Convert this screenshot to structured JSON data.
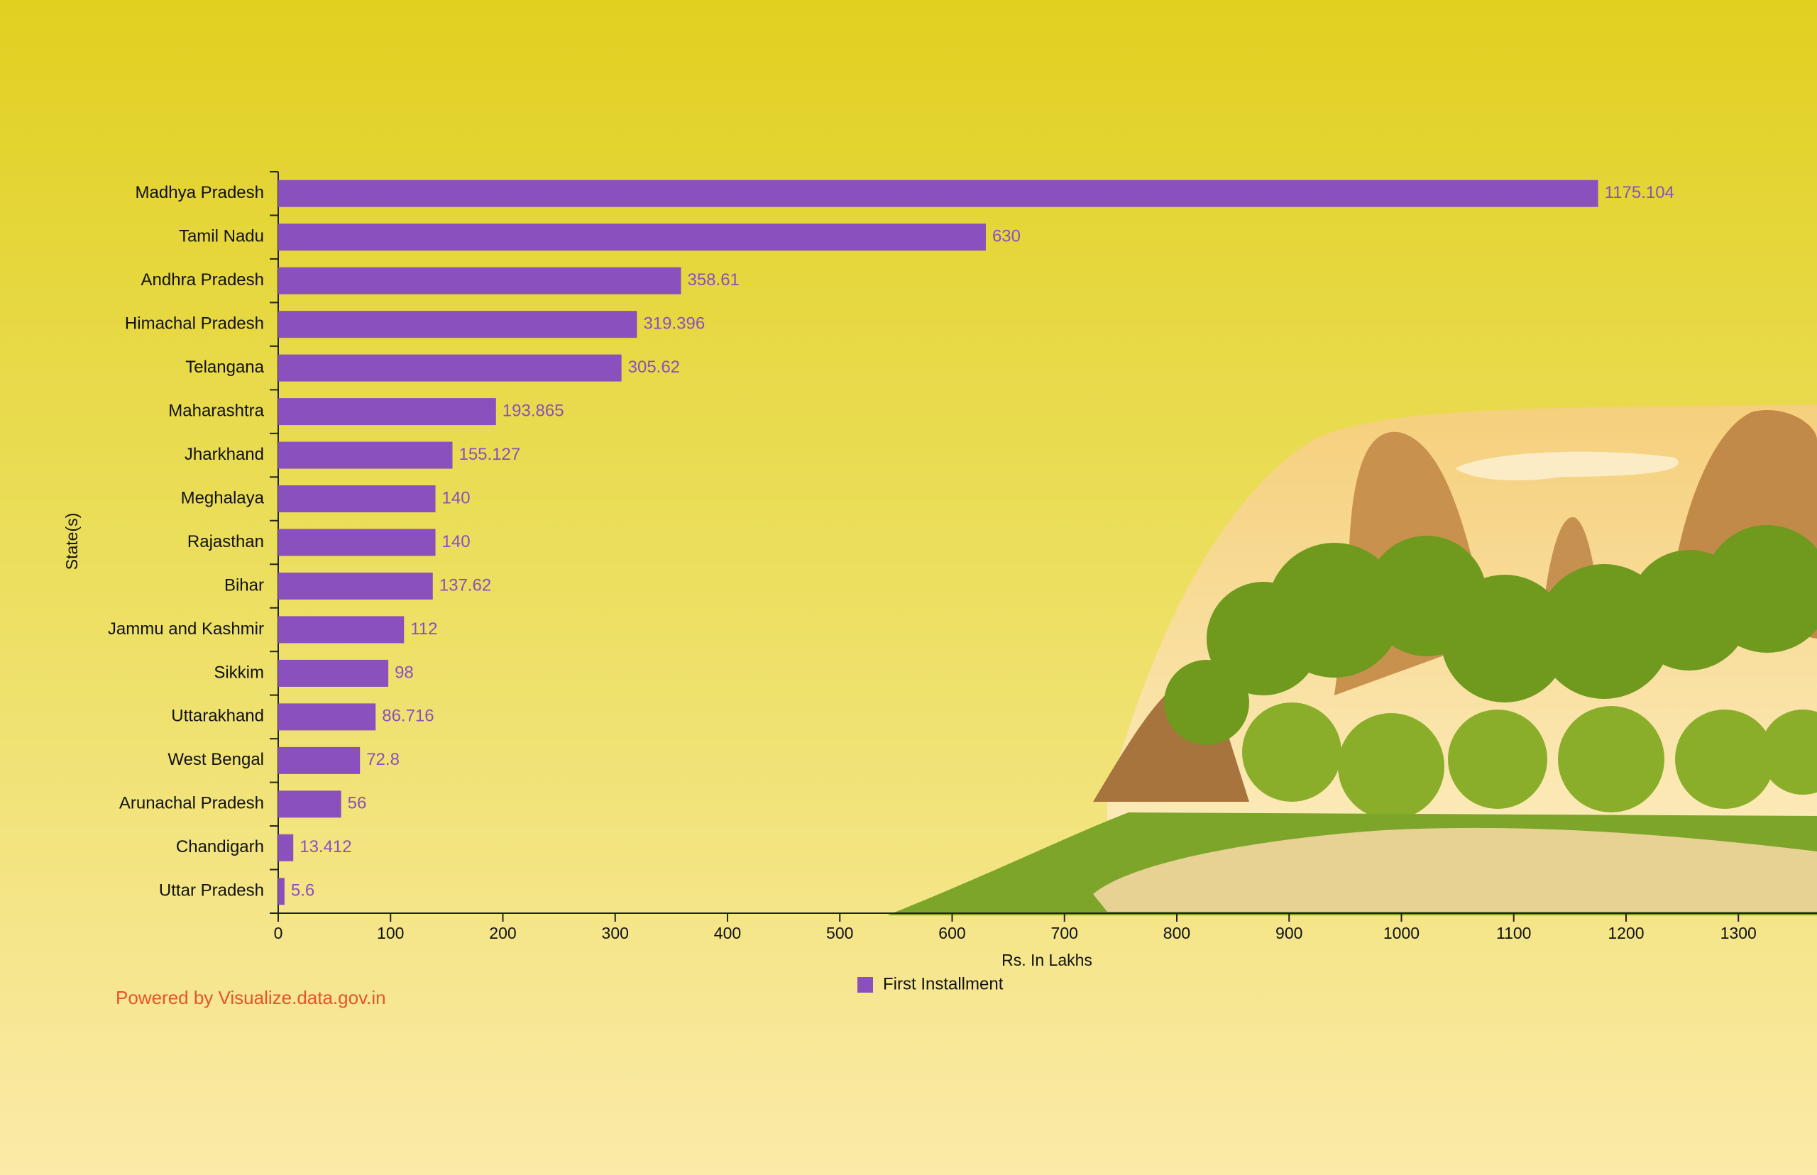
{
  "chart_data": {
    "type": "bar",
    "orientation": "horizontal",
    "categories": [
      "Madhya Pradesh",
      "Tamil Nadu",
      "Andhra Pradesh",
      "Himachal Pradesh",
      "Telangana",
      "Maharashtra",
      "Jharkhand",
      "Meghalaya",
      "Rajasthan",
      "Bihar",
      "Jammu and Kashmir",
      "Sikkim",
      "Uttarakhand",
      "West Bengal",
      "Arunachal Pradesh",
      "Chandigarh",
      "Uttar Pradesh"
    ],
    "series": [
      {
        "name": "First Installment",
        "color": "#8a50bd",
        "values": [
          1175.104,
          630,
          358.61,
          319.396,
          305.62,
          193.865,
          155.127,
          140,
          140,
          137.62,
          112,
          98,
          86.716,
          72.8,
          56,
          13.412,
          5.6
        ]
      }
    ],
    "xlim": [
      0,
      1370
    ],
    "xticks": [
      0,
      100,
      200,
      300,
      400,
      500,
      600,
      700,
      800,
      900,
      1000,
      1100,
      1200,
      1300
    ],
    "x_label": "Rs. In Lakhs",
    "y_label": "State(s)",
    "legend": "bottom",
    "credit": "Powered by Visualize.data.gov.in"
  }
}
